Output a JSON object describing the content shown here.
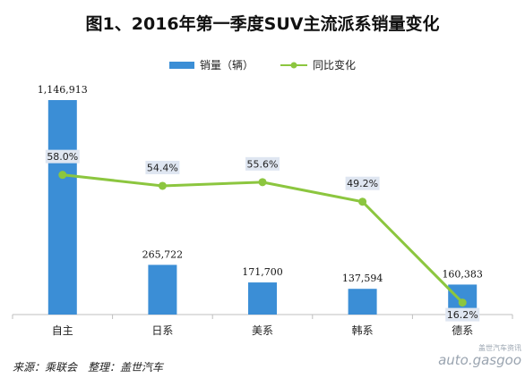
{
  "chart_data": {
    "type": "bar",
    "title": "图1、2016年第一季度SUV主流派系销量变化",
    "categories": [
      "自主",
      "日系",
      "美系",
      "韩系",
      "德系"
    ],
    "series": [
      {
        "name": "销量（辆）",
        "type": "bar",
        "values": [
          1146913,
          265722,
          171700,
          137594,
          160383
        ],
        "labels": [
          "1,146,913",
          "265,722",
          "171,700",
          "137,594",
          "160,383"
        ],
        "color": "#3b8ed6"
      },
      {
        "name": "同比变化",
        "type": "line",
        "values": [
          58.0,
          54.4,
          55.6,
          49.2,
          16.2
        ],
        "labels": [
          "58.0%",
          "54.4%",
          "55.6%",
          "49.2%",
          "16.2%"
        ],
        "color": "#8cc63f"
      }
    ],
    "legend_position": "top",
    "grid": false
  },
  "source": "来源：乘联会　整理：盖世汽车",
  "watermark": {
    "top": "盖世汽车资讯",
    "bottom": "auto.gasgoo"
  }
}
